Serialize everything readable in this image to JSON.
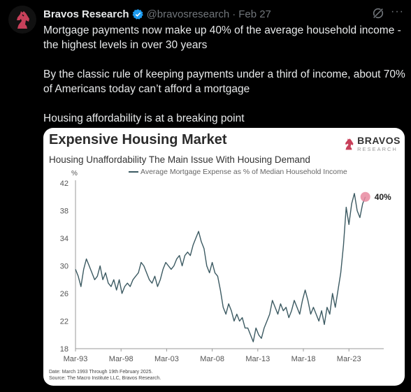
{
  "post": {
    "author_name": "Bravos Research",
    "handle": "@bravosresearch",
    "separator": "·",
    "date": "Feb 27",
    "more_label": "···",
    "paragraphs": [
      "Mortgage payments now make up 40% of the average household income -\nthe highest levels in over 30 years",
      "By the classic rule of keeping payments under a third of income, about 70%\nof Americans today can’t afford a mortgage",
      "Housing affordability is at a breaking point"
    ]
  },
  "card": {
    "title": "Expensive Housing Market",
    "subtitle": "Housing Unaffordability The Main Issue With Housing Demand",
    "logo_main": "BRAVOS",
    "logo_sub": "RESEARCH",
    "notes": [
      "Date: March 1993 Through 19th February 2025.",
      "Source: The Macro Institute LLC, Bravos Research."
    ]
  },
  "chart_data": {
    "type": "line",
    "ylabel": "%",
    "ylim": [
      18,
      42
    ],
    "yticks": [
      18,
      22,
      26,
      30,
      34,
      38,
      42
    ],
    "xlim": [
      1993.2,
      2025.1
    ],
    "xticks": [
      {
        "label": "Mar-93",
        "value": 1993.2
      },
      {
        "label": "Mar-98",
        "value": 1998.2
      },
      {
        "label": "Mar-03",
        "value": 2003.2
      },
      {
        "label": "Mar-08",
        "value": 2008.2
      },
      {
        "label": "Mar-13",
        "value": 2013.2
      },
      {
        "label": "Mar-18",
        "value": 2018.2
      },
      {
        "label": "Mar-23",
        "value": 2023.2
      }
    ],
    "series": [
      {
        "name": "Average Mortgage Expense as % of Median Household Income",
        "x": [
          1993.2,
          1993.5,
          1993.8,
          1994.1,
          1994.4,
          1994.7,
          1995.0,
          1995.3,
          1995.6,
          1995.9,
          1996.2,
          1996.5,
          1996.8,
          1997.1,
          1997.4,
          1997.7,
          1998.0,
          1998.3,
          1998.6,
          1998.9,
          1999.2,
          1999.5,
          1999.8,
          2000.1,
          2000.4,
          2000.7,
          2001.0,
          2001.3,
          2001.6,
          2001.9,
          2002.2,
          2002.5,
          2002.8,
          2003.1,
          2003.4,
          2003.7,
          2004.0,
          2004.3,
          2004.6,
          2004.9,
          2005.2,
          2005.5,
          2005.8,
          2006.1,
          2006.4,
          2006.7,
          2007.0,
          2007.3,
          2007.6,
          2007.9,
          2008.2,
          2008.5,
          2008.8,
          2009.1,
          2009.4,
          2009.7,
          2010.0,
          2010.3,
          2010.6,
          2010.9,
          2011.2,
          2011.5,
          2011.8,
          2012.1,
          2012.4,
          2012.7,
          2013.0,
          2013.3,
          2013.6,
          2013.9,
          2014.2,
          2014.5,
          2014.8,
          2015.1,
          2015.4,
          2015.7,
          2016.0,
          2016.3,
          2016.6,
          2016.9,
          2017.2,
          2017.5,
          2017.8,
          2018.1,
          2018.4,
          2018.7,
          2019.0,
          2019.3,
          2019.6,
          2019.9,
          2020.2,
          2020.5,
          2020.8,
          2021.1,
          2021.4,
          2021.7,
          2022.0,
          2022.3,
          2022.6,
          2022.9,
          2023.2,
          2023.5,
          2023.8,
          2024.1,
          2024.4,
          2024.7,
          2025.0
        ],
        "values": [
          29.5,
          28.5,
          27,
          29.5,
          31,
          30,
          29,
          28,
          28.5,
          30,
          28,
          29,
          27.5,
          27,
          28,
          26.5,
          28,
          26,
          27,
          27.5,
          27,
          28,
          28.5,
          29,
          30.5,
          30,
          29,
          28,
          27.5,
          28.5,
          27,
          28,
          29.5,
          30.5,
          30,
          29.5,
          30,
          31,
          31.5,
          30,
          31.5,
          32,
          31.5,
          33,
          34,
          35,
          33.5,
          32.5,
          30,
          29,
          30.5,
          29,
          28.5,
          26.5,
          24,
          23,
          24.5,
          23.5,
          22,
          23,
          22,
          22.5,
          21,
          21,
          20,
          19,
          21,
          20,
          19.5,
          21,
          22,
          23,
          25,
          24,
          23,
          24.5,
          23.5,
          24,
          22.5,
          23.5,
          25,
          24,
          23,
          25,
          26.5,
          25,
          23,
          24,
          23,
          22,
          23.5,
          21.5,
          24,
          23,
          26,
          24,
          26.5,
          29,
          33,
          38.5,
          36,
          39,
          40.5,
          38,
          37,
          39,
          40
        ]
      }
    ],
    "annotation": {
      "label": "40%",
      "x": 2025.0,
      "y": 40,
      "color": "#e88aa0"
    },
    "line_color": "#3c5a62",
    "grid": false,
    "legend_placement": "top"
  },
  "colors": {
    "verified": "#1d9bf0",
    "logo_red": "#c8405a"
  }
}
